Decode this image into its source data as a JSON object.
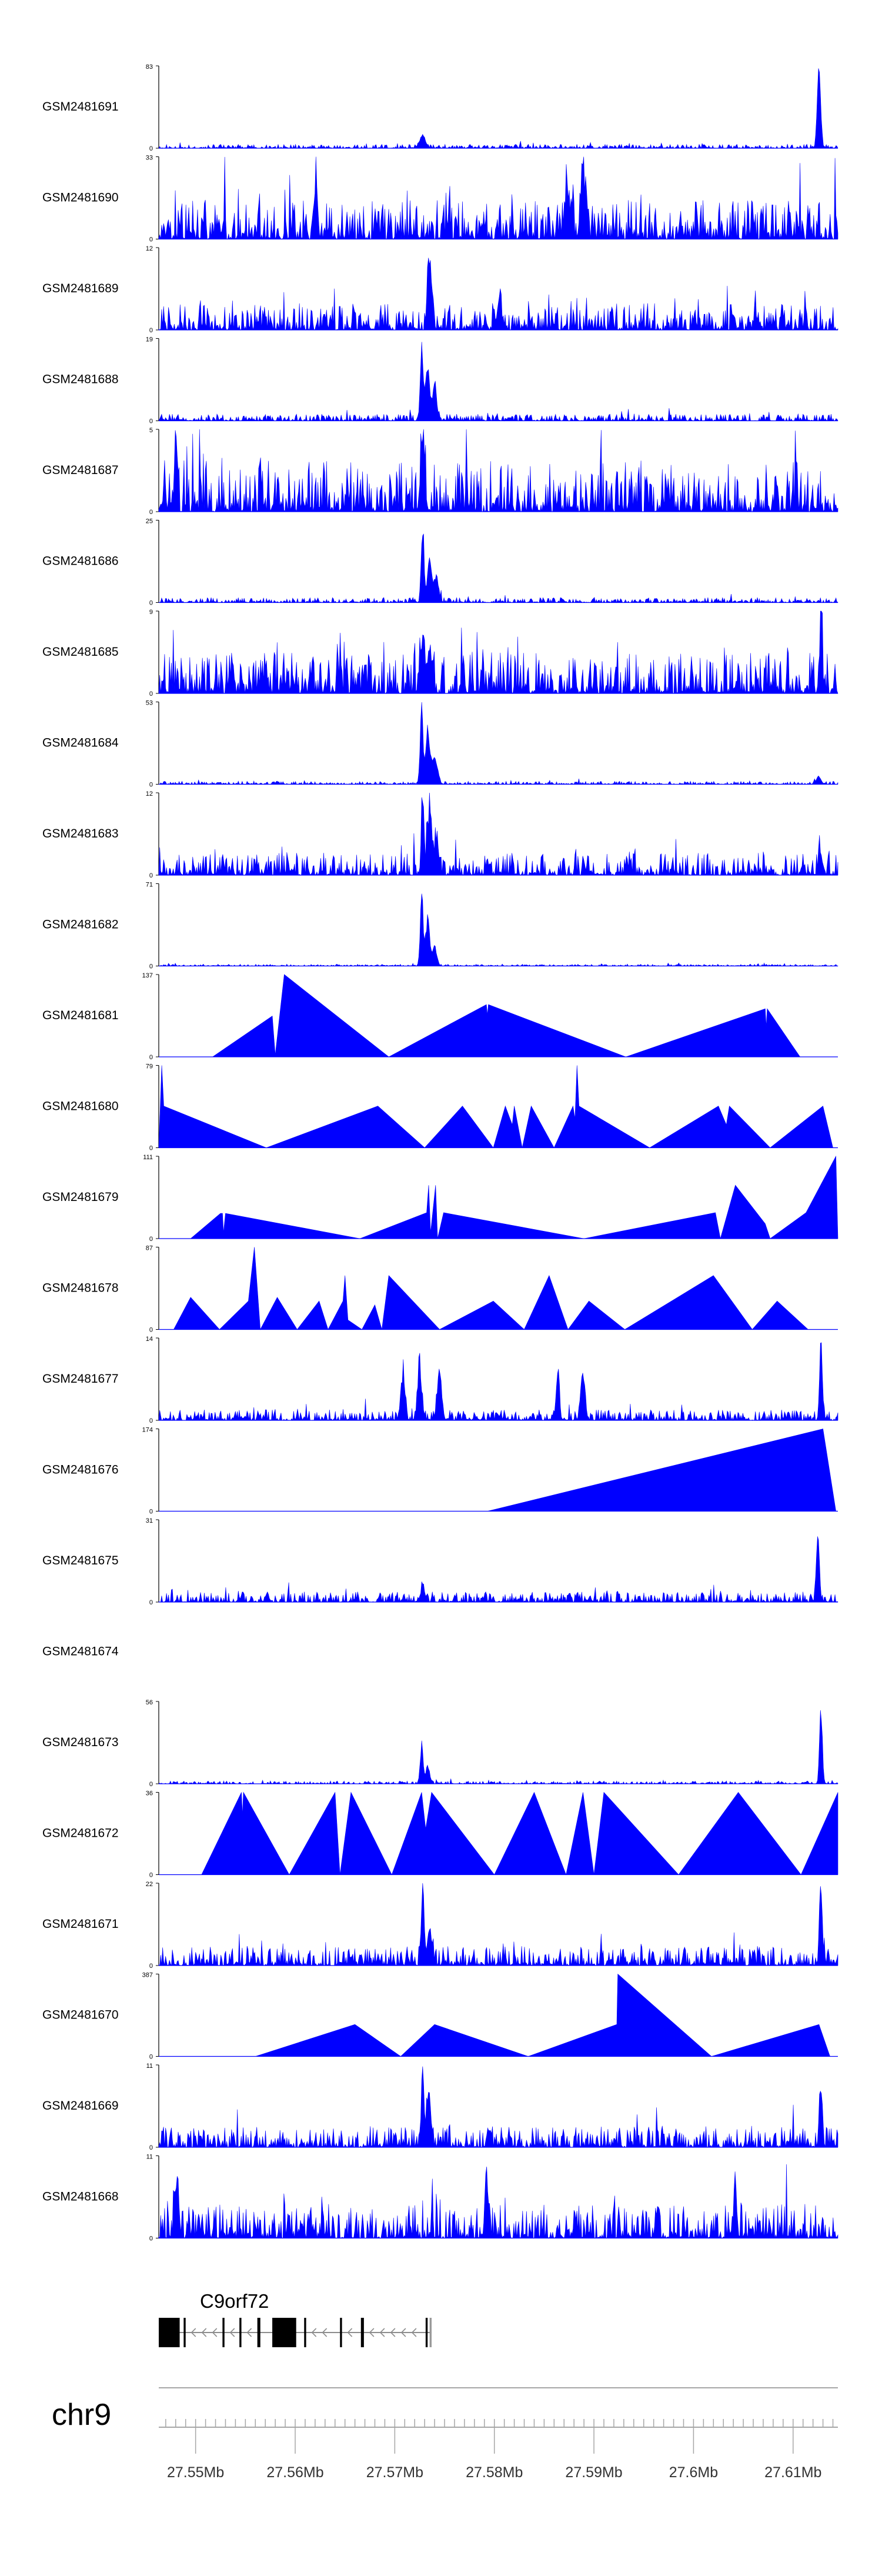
{
  "chart_data": {
    "type": "area",
    "title": "",
    "color": "#0000ff",
    "genome": {
      "chromosome": "chr9",
      "gene": "C9orf72",
      "strand": "-"
    },
    "xlim": [
      27.5463,
      27.6145
    ],
    "xticks": [
      {
        "value": 27.55,
        "label": "27.55Mb"
      },
      {
        "value": 27.56,
        "label": "27.56Mb"
      },
      {
        "value": 27.57,
        "label": "27.57Mb"
      },
      {
        "value": 27.58,
        "label": "27.58Mb"
      },
      {
        "value": 27.59,
        "label": "27.59Mb"
      },
      {
        "value": 27.6,
        "label": "27.6Mb"
      },
      {
        "value": 27.61,
        "label": "27.61Mb"
      }
    ],
    "tracks": [
      {
        "name": "GSM2481691",
        "ymax": 83,
        "ymin_label": "0",
        "ymax_label": "83",
        "style": "dense",
        "base": 3,
        "seed": 11,
        "peaks": [
          [
            27.5728,
            14,
            0.0004
          ],
          [
            27.6126,
            83,
            0.00025
          ]
        ]
      },
      {
        "name": "GSM2481690",
        "ymax": 33,
        "ymin_label": "0",
        "ymax_label": "33",
        "style": "tri",
        "base": 12,
        "seed": 21,
        "peaks": [
          [
            27.5621,
            26,
            0.0002
          ],
          [
            27.5873,
            23,
            0.0003
          ],
          [
            27.5889,
            33,
            0.0003
          ],
          [
            27.5878,
            15,
            0.0002
          ]
        ]
      },
      {
        "name": "GSM2481689",
        "ymax": 12,
        "ymin_label": "0",
        "ymax_label": "12",
        "style": "dense",
        "base": 3,
        "seed": 31,
        "peaks": [
          [
            27.5735,
            12,
            0.00025
          ],
          [
            27.5805,
            5,
            0.0003
          ]
        ]
      },
      {
        "name": "GSM2481688",
        "ymax": 19,
        "ymin_label": "0",
        "ymax_label": "19",
        "style": "dense",
        "base": 1.2,
        "seed": 41,
        "peaks": [
          [
            27.5727,
            19,
            0.0002
          ],
          [
            27.5733,
            13,
            0.0003
          ],
          [
            27.574,
            9,
            0.0003
          ]
        ]
      },
      {
        "name": "GSM2481687",
        "ymax": 5,
        "ymin_label": "0",
        "ymax_label": "5",
        "style": "dense",
        "base": 2.4,
        "seed": 51,
        "peaks": [
          [
            27.5728,
            5,
            0.0003
          ],
          [
            27.548,
            5,
            0.0002
          ]
        ]
      },
      {
        "name": "GSM2481686",
        "ymax": 25,
        "ymin_label": "0",
        "ymax_label": "25",
        "style": "dense",
        "base": 1.2,
        "seed": 61,
        "peaks": [
          [
            27.5728,
            25,
            0.0002
          ],
          [
            27.5735,
            15,
            0.0003
          ],
          [
            27.5742,
            8,
            0.0003
          ]
        ]
      },
      {
        "name": "GSM2481685",
        "ymax": 9,
        "ymin_label": "0",
        "ymax_label": "9",
        "style": "dense",
        "base": 3.5,
        "seed": 71,
        "peaks": [
          [
            27.5728,
            7,
            0.0003
          ],
          [
            27.5735,
            6,
            0.0003
          ],
          [
            27.6128,
            9,
            0.0002
          ]
        ]
      },
      {
        "name": "GSM2481684",
        "ymax": 53,
        "ymin_label": "0",
        "ymax_label": "53",
        "style": "dense",
        "base": 1.5,
        "seed": 81,
        "peaks": [
          [
            27.5727,
            53,
            0.0002
          ],
          [
            27.5733,
            38,
            0.0003
          ],
          [
            27.574,
            20,
            0.0004
          ],
          [
            27.6126,
            6,
            0.0003
          ]
        ]
      },
      {
        "name": "GSM2481683",
        "ymax": 12,
        "ymin_label": "0",
        "ymax_label": "12",
        "style": "dense",
        "base": 2.5,
        "seed": 91,
        "peaks": [
          [
            27.5728,
            12,
            0.0002
          ],
          [
            27.5735,
            10,
            0.0003
          ],
          [
            27.5742,
            6,
            0.0003
          ],
          [
            27.6127,
            4,
            0.0002
          ]
        ]
      },
      {
        "name": "GSM2481682",
        "ymax": 71,
        "ymin_label": "0",
        "ymax_label": "71",
        "style": "dense",
        "base": 1.2,
        "seed": 101,
        "peaks": [
          [
            27.5727,
            71,
            0.0002
          ],
          [
            27.5733,
            45,
            0.0003
          ],
          [
            27.574,
            18,
            0.0003
          ]
        ]
      },
      {
        "name": "GSM2481681",
        "ymax": 137,
        "ymin_label": "0",
        "ymax_label": "137",
        "style": "poly",
        "points": [
          [
            27.5517,
            0
          ],
          [
            27.5577,
            68
          ],
          [
            27.558,
            3
          ],
          [
            27.5589,
            137
          ],
          [
            27.5694,
            0
          ],
          [
            27.5792,
            87
          ],
          [
            27.5793,
            70
          ],
          [
            27.5794,
            87
          ],
          [
            27.5932,
            0
          ],
          [
            27.6072,
            80
          ],
          [
            27.6073,
            50
          ],
          [
            27.6074,
            80
          ],
          [
            27.6107,
            0
          ]
        ]
      },
      {
        "name": "GSM2481680",
        "ymax": 79,
        "ymin_label": "0",
        "ymax_label": "79",
        "style": "poly",
        "points": [
          [
            27.5463,
            0
          ],
          [
            27.5466,
            79
          ],
          [
            27.5468,
            40
          ],
          [
            27.5571,
            0
          ],
          [
            27.5683,
            40
          ],
          [
            27.573,
            0
          ],
          [
            27.5768,
            40
          ],
          [
            27.5799,
            0
          ],
          [
            27.5811,
            40
          ],
          [
            27.5818,
            22
          ],
          [
            27.582,
            40
          ],
          [
            27.5828,
            0
          ],
          [
            27.5837,
            40
          ],
          [
            27.586,
            0
          ],
          [
            27.5879,
            40
          ],
          [
            27.5881,
            28
          ],
          [
            27.5883,
            79
          ],
          [
            27.5885,
            40
          ],
          [
            27.5956,
            0
          ],
          [
            27.6025,
            40
          ],
          [
            27.6033,
            22
          ],
          [
            27.6036,
            40
          ],
          [
            27.6077,
            0
          ],
          [
            27.613,
            40
          ],
          [
            27.614,
            0
          ]
        ]
      },
      {
        "name": "GSM2481679",
        "ymax": 111,
        "ymin_label": "0",
        "ymax_label": "111",
        "style": "poly",
        "points": [
          [
            27.5495,
            0
          ],
          [
            27.5525,
            34
          ],
          [
            27.5527,
            34
          ],
          [
            27.5528,
            8
          ],
          [
            27.553,
            34
          ],
          [
            27.5665,
            0
          ],
          [
            27.5732,
            35
          ],
          [
            27.5734,
            72
          ],
          [
            27.5736,
            8
          ],
          [
            27.5741,
            72
          ],
          [
            27.5743,
            0
          ],
          [
            27.5749,
            35
          ],
          [
            27.589,
            0
          ],
          [
            27.6022,
            35
          ],
          [
            27.6027,
            0
          ],
          [
            27.6042,
            72
          ],
          [
            27.6072,
            20
          ],
          [
            27.6077,
            0
          ],
          [
            27.6113,
            35
          ],
          [
            27.6143,
            111
          ],
          [
            27.6145,
            0
          ]
        ]
      },
      {
        "name": "GSM2481678",
        "ymax": 87,
        "ymin_label": "0",
        "ymax_label": "87",
        "style": "poly",
        "points": [
          [
            27.5478,
            0
          ],
          [
            27.5495,
            34
          ],
          [
            27.5524,
            0
          ],
          [
            27.5553,
            30
          ],
          [
            27.5559,
            87
          ],
          [
            27.5565,
            0
          ],
          [
            27.5582,
            34
          ],
          [
            27.5602,
            0
          ],
          [
            27.5624,
            30
          ],
          [
            27.5633,
            0
          ],
          [
            27.5648,
            30
          ],
          [
            27.565,
            57
          ],
          [
            27.5653,
            10
          ],
          [
            27.5667,
            0
          ],
          [
            27.568,
            26
          ],
          [
            27.5687,
            0
          ],
          [
            27.5694,
            57
          ],
          [
            27.5745,
            0
          ],
          [
            27.5799,
            30
          ],
          [
            27.583,
            0
          ],
          [
            27.5855,
            57
          ],
          [
            27.5874,
            0
          ],
          [
            27.5895,
            30
          ],
          [
            27.5931,
            0
          ],
          [
            27.602,
            57
          ],
          [
            27.6059,
            0
          ],
          [
            27.6084,
            30
          ],
          [
            27.6115,
            0
          ]
        ]
      },
      {
        "name": "GSM2481677",
        "ymax": 14,
        "ymin_label": "0",
        "ymax_label": "14",
        "style": "dense",
        "base": 1.4,
        "seed": 111,
        "peaks": [
          [
            27.5708,
            8,
            0.0003
          ],
          [
            27.5725,
            10,
            0.0003
          ],
          [
            27.5745,
            9,
            0.0003
          ],
          [
            27.5864,
            10,
            0.0002
          ],
          [
            27.5889,
            8,
            0.0003
          ],
          [
            27.6128,
            14,
            0.0002
          ]
        ]
      },
      {
        "name": "GSM2481676",
        "ymax": 174,
        "ymin_label": "0",
        "ymax_label": "174",
        "style": "poly",
        "points": [
          [
            27.5793,
            0
          ],
          [
            27.613,
            174
          ],
          [
            27.6143,
            0
          ]
        ]
      },
      {
        "name": "GSM2481675",
        "ymax": 31,
        "ymin_label": "0",
        "ymax_label": "31",
        "style": "dense",
        "base": 3,
        "seed": 121,
        "peaks": [
          [
            27.5728,
            6,
            0.0003
          ],
          [
            27.6125,
            31,
            0.0002
          ]
        ]
      },
      {
        "name": "GSM2481674",
        "ymax": null,
        "ymin_label": "",
        "ymax_label": "",
        "style": "empty"
      },
      {
        "name": "GSM2481673",
        "ymax": 56,
        "ymin_label": "0",
        "ymax_label": "56",
        "style": "dense",
        "base": 1.5,
        "seed": 131,
        "peaks": [
          [
            27.5727,
            30,
            0.0002
          ],
          [
            27.5733,
            12,
            0.0003
          ],
          [
            27.6128,
            56,
            0.0002
          ]
        ]
      },
      {
        "name": "GSM2481672",
        "ymax": 36,
        "ymin_label": "0",
        "ymax_label": "36",
        "style": "poly",
        "points": [
          [
            27.5506,
            0
          ],
          [
            27.5546,
            36
          ],
          [
            27.5547,
            26
          ],
          [
            27.5548,
            36
          ],
          [
            27.5594,
            0
          ],
          [
            27.564,
            36
          ],
          [
            27.5645,
            0
          ],
          [
            27.5656,
            36
          ],
          [
            27.5697,
            0
          ],
          [
            27.5727,
            36
          ],
          [
            27.5731,
            20
          ],
          [
            27.5737,
            36
          ],
          [
            27.58,
            0
          ],
          [
            27.584,
            36
          ],
          [
            27.5872,
            0
          ],
          [
            27.5889,
            36
          ],
          [
            27.59,
            0
          ],
          [
            27.591,
            36
          ],
          [
            27.5985,
            0
          ],
          [
            27.6045,
            36
          ],
          [
            27.6108,
            0
          ],
          [
            27.6145,
            36
          ]
        ]
      },
      {
        "name": "GSM2481671",
        "ymax": 22,
        "ymin_label": "0",
        "ymax_label": "22",
        "style": "dense",
        "base": 4,
        "seed": 141,
        "peaks": [
          [
            27.5728,
            22,
            0.0002
          ],
          [
            27.5735,
            12,
            0.0003
          ],
          [
            27.6128,
            22,
            0.0002
          ]
        ]
      },
      {
        "name": "GSM2481670",
        "ymax": 387,
        "ymin_label": "0",
        "ymax_label": "387",
        "style": "poly",
        "points": [
          [
            27.556,
            0
          ],
          [
            27.566,
            150
          ],
          [
            27.5706,
            0
          ],
          [
            27.574,
            150
          ],
          [
            27.5834,
            0
          ],
          [
            27.5923,
            150
          ],
          [
            27.5924,
            387
          ],
          [
            27.6018,
            0
          ],
          [
            27.6126,
            150
          ],
          [
            27.6137,
            0
          ]
        ]
      },
      {
        "name": "GSM2481669",
        "ymax": 11,
        "ymin_label": "0",
        "ymax_label": "11",
        "style": "dense",
        "base": 2.2,
        "seed": 151,
        "peaks": [
          [
            27.5728,
            11,
            0.0002
          ],
          [
            27.5734,
            8,
            0.0003
          ],
          [
            27.6128,
            9,
            0.0002
          ]
        ]
      },
      {
        "name": "GSM2481668",
        "ymax": 11,
        "ymin_label": "0",
        "ymax_label": "11",
        "style": "dense",
        "base": 3.5,
        "seed": 161,
        "peaks": [
          [
            27.5481,
            9,
            0.0003
          ],
          [
            27.5792,
            11,
            0.0002
          ],
          [
            27.6042,
            7,
            0.0002
          ]
        ]
      }
    ],
    "gene_model": {
      "label": "C9orf72",
      "start": 27.5463,
      "end": 27.5737,
      "exons": [
        [
          27.5463,
          27.5484
        ],
        [
          27.5488,
          27.549
        ],
        [
          27.5527,
          27.5529
        ],
        [
          27.5544,
          27.5546
        ],
        [
          27.5562,
          27.5565
        ],
        [
          27.5577,
          27.5601
        ],
        [
          27.5609,
          27.5611
        ],
        [
          27.5645,
          27.5647
        ],
        [
          27.5666,
          27.5669
        ],
        [
          27.5731,
          27.5733
        ],
        [
          27.5735,
          27.5737
        ]
      ]
    }
  }
}
